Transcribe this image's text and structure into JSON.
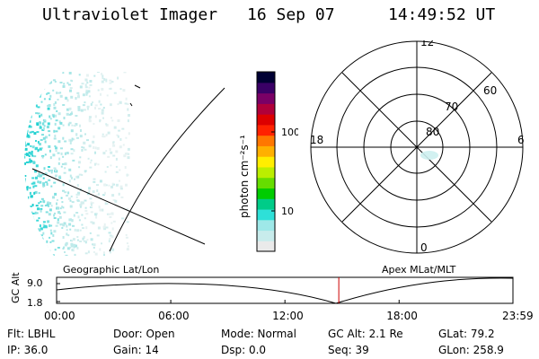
{
  "header": {
    "title": "Ultraviolet Imager",
    "date": "16 Sep 07",
    "time": "14:49:52 UT"
  },
  "colorbar": {
    "label": "photon cm⁻²s⁻¹",
    "ticks": [
      "100",
      "10"
    ],
    "scale": "log",
    "colors": [
      "#eaeaea",
      "#c8ecec",
      "#9ee8e8",
      "#2ee0d8",
      "#00cc88",
      "#00cc00",
      "#66dd00",
      "#bbee00",
      "#ffee00",
      "#ffb000",
      "#ff7700",
      "#ff2200",
      "#dd0000",
      "#b0003a",
      "#7a0066",
      "#3a0066",
      "#000033"
    ]
  },
  "polar_plot": {
    "mlt_labels": {
      "top": "12",
      "bottom": "0",
      "left": "18",
      "right": "6"
    },
    "lat_labels": [
      "80",
      "70",
      "60"
    ]
  },
  "timeline": {
    "ylabel": "GC Alt",
    "yticks": [
      "9.0",
      "1.8"
    ],
    "left_label": "Geographic Lat/Lon",
    "right_label": "Apex MLat/MLT",
    "xticks": [
      "00:00",
      "06:00",
      "12:00",
      "18:00",
      "23:59"
    ],
    "marker_time": "14:49:52",
    "marker_color": "#cc0000"
  },
  "info": {
    "filter": "Flt: LBHL",
    "door": "Door: Open",
    "mode": "Mode: Normal",
    "gc_alt": "GC Alt: 2.1 Re",
    "glat": "GLat:  79.2",
    "ip": "IP: 36.0",
    "gain": "Gain: 14",
    "dsp": "Dsp:     0.0",
    "seq": "Seq: 39",
    "glon": "GLon: 258.9"
  }
}
